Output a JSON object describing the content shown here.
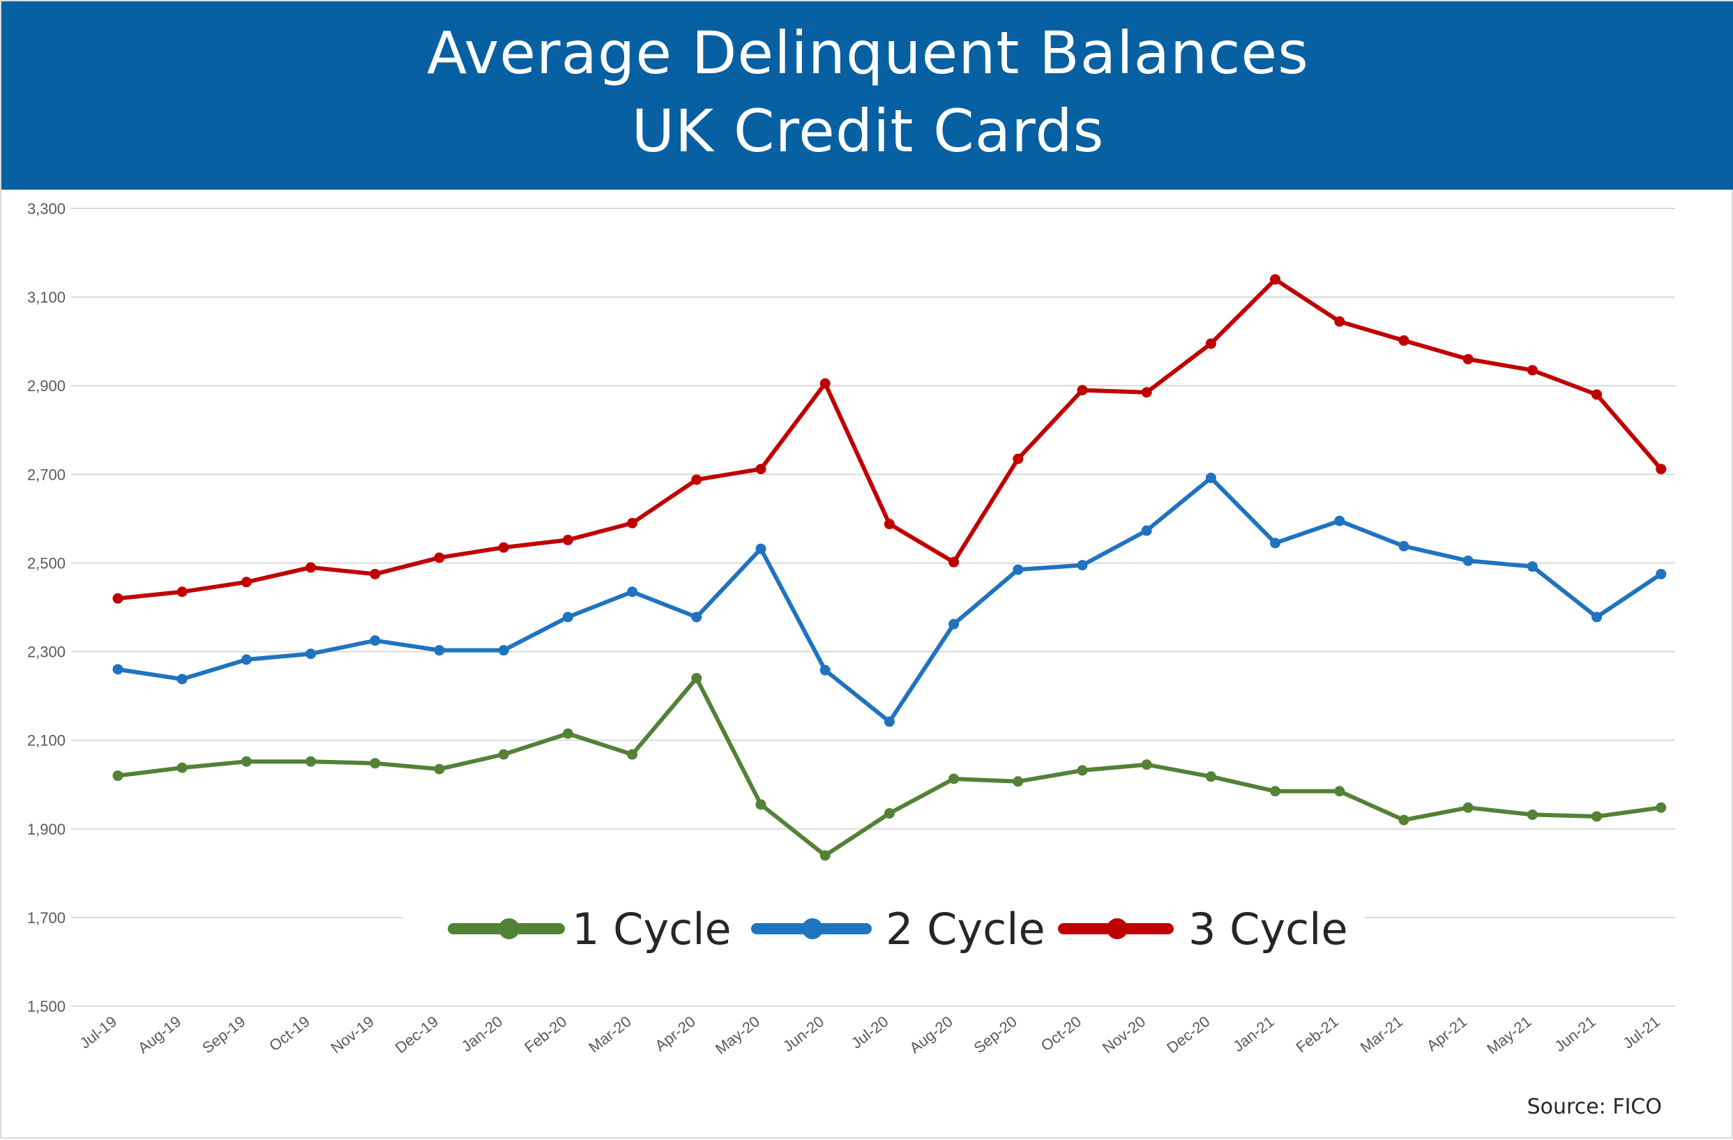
{
  "header": {
    "title_line1": "Average Delinquent Balances",
    "title_line2": "UK Credit Cards"
  },
  "source_text": "Source: FICO",
  "colors": {
    "banner": "#0660a2",
    "grid": "#d9d9d9",
    "one_cycle": "#538135",
    "two_cycle": "#1f73bf",
    "three_cycle": "#c00000"
  },
  "chart_data": {
    "type": "line",
    "title": "Average Delinquent Balances UK Credit Cards",
    "xlabel": "",
    "ylabel": "",
    "ylim": [
      1500,
      3300
    ],
    "yticks": [
      1500,
      1700,
      1900,
      2100,
      2300,
      2500,
      2700,
      2900,
      3100,
      3300
    ],
    "ytick_labels": [
      "1,500",
      "1,700",
      "1,900",
      "2,100",
      "2,300",
      "2,500",
      "2,700",
      "2,900",
      "3,100",
      "3,300"
    ],
    "grid": true,
    "legend": "bottom-center",
    "categories": [
      "Jul-19",
      "Aug-19",
      "Sep-19",
      "Oct-19",
      "Nov-19",
      "Dec-19",
      "Jan-20",
      "Feb-20",
      "Mar-20",
      "Apr-20",
      "May-20",
      "Jun-20",
      "Jul-20",
      "Aug-20",
      "Sep-20",
      "Oct-20",
      "Nov-20",
      "Dec-20",
      "Jan-21",
      "Feb-21",
      "Mar-21",
      "Apr-21",
      "May-21",
      "Jun-21",
      "Jul-21"
    ],
    "series": [
      {
        "name": "1 Cycle",
        "color": "#538135",
        "values": [
          2020,
          2038,
          2052,
          2052,
          2048,
          2035,
          2068,
          2115,
          2068,
          2240,
          1955,
          1840,
          1935,
          2013,
          2007,
          2032,
          2045,
          2018,
          1985,
          1985,
          1920,
          1948,
          1932,
          1928,
          1948
        ]
      },
      {
        "name": "2 Cycle",
        "color": "#1f73bf",
        "values": [
          2260,
          2238,
          2282,
          2295,
          2325,
          2303,
          2303,
          2378,
          2435,
          2378,
          2532,
          2258,
          2142,
          2362,
          2485,
          2495,
          2573,
          2692,
          2545,
          2595,
          2538,
          2505,
          2492,
          2378,
          2475
        ]
      },
      {
        "name": "3 Cycle",
        "color": "#c00000",
        "values": [
          2420,
          2435,
          2457,
          2490,
          2475,
          2512,
          2535,
          2552,
          2590,
          2688,
          2712,
          2905,
          2588,
          2502,
          2735,
          2890,
          2885,
          2995,
          3140,
          3045,
          3002,
          2960,
          2935,
          2880,
          2712
        ]
      }
    ]
  }
}
